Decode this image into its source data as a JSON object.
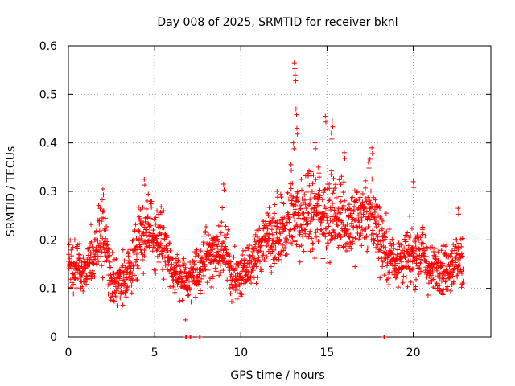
{
  "chart_data": {
    "type": "scatter",
    "title": "Day 008 of 2025, SRMTID for receiver bknl",
    "xlabel": "GPS time / hours",
    "ylabel": "SRMTID / TECUs",
    "xlim": [
      0,
      24.5
    ],
    "ylim": [
      0,
      0.6
    ],
    "xticks": [
      0,
      5,
      10,
      15,
      20
    ],
    "xtick_labels": [
      "0",
      "5",
      "10",
      "15",
      "20"
    ],
    "yticks": [
      0,
      0.1,
      0.2,
      0.3,
      0.4,
      0.5,
      0.6
    ],
    "ytick_labels": [
      "0",
      "0.1",
      "0.2",
      "0.3",
      "0.4",
      "0.5",
      "0.6"
    ],
    "grid": true,
    "marker": "+",
    "series": [
      {
        "name": "SRMTID",
        "color": "#ff0000",
        "profile": [
          [
            0.0,
            0.14
          ],
          [
            0.5,
            0.15
          ],
          [
            1.0,
            0.13
          ],
          [
            1.5,
            0.18
          ],
          [
            2.0,
            0.22
          ],
          [
            2.5,
            0.12
          ],
          [
            3.0,
            0.11
          ],
          [
            3.5,
            0.13
          ],
          [
            4.0,
            0.18
          ],
          [
            4.5,
            0.22
          ],
          [
            5.0,
            0.21
          ],
          [
            5.5,
            0.2
          ],
          [
            6.0,
            0.13
          ],
          [
            6.5,
            0.13
          ],
          [
            7.0,
            0.11
          ],
          [
            7.5,
            0.14
          ],
          [
            8.0,
            0.17
          ],
          [
            8.5,
            0.17
          ],
          [
            9.0,
            0.18
          ],
          [
            9.5,
            0.13
          ],
          [
            10.0,
            0.12
          ],
          [
            10.5,
            0.15
          ],
          [
            11.0,
            0.17
          ],
          [
            11.5,
            0.2
          ],
          [
            12.0,
            0.19
          ],
          [
            12.5,
            0.22
          ],
          [
            13.0,
            0.26
          ],
          [
            13.5,
            0.24
          ],
          [
            14.0,
            0.26
          ],
          [
            14.5,
            0.25
          ],
          [
            15.0,
            0.26
          ],
          [
            15.5,
            0.25
          ],
          [
            16.0,
            0.24
          ],
          [
            16.5,
            0.24
          ],
          [
            17.0,
            0.25
          ],
          [
            17.5,
            0.26
          ],
          [
            18.0,
            0.22
          ],
          [
            18.5,
            0.17
          ],
          [
            19.0,
            0.16
          ],
          [
            19.5,
            0.16
          ],
          [
            20.0,
            0.17
          ],
          [
            20.5,
            0.18
          ],
          [
            21.0,
            0.13
          ],
          [
            21.5,
            0.15
          ],
          [
            22.0,
            0.14
          ],
          [
            22.5,
            0.16
          ],
          [
            22.9,
            0.15
          ]
        ],
        "peaks": [
          [
            13.1,
            0.565
          ],
          [
            13.15,
            0.54
          ],
          [
            13.2,
            0.47
          ],
          [
            13.25,
            0.43
          ],
          [
            13.05,
            0.4
          ],
          [
            14.9,
            0.455
          ],
          [
            15.3,
            0.445
          ],
          [
            15.25,
            0.42
          ],
          [
            14.3,
            0.4
          ],
          [
            17.6,
            0.39
          ],
          [
            4.4,
            0.325
          ],
          [
            2.0,
            0.305
          ],
          [
            9.0,
            0.315
          ],
          [
            20.0,
            0.32
          ],
          [
            12.9,
            0.355
          ],
          [
            17.4,
            0.36
          ],
          [
            16.0,
            0.38
          ],
          [
            14.5,
            0.35
          ],
          [
            12.1,
            0.3
          ],
          [
            22.6,
            0.265
          ]
        ],
        "zero_points": [
          6.8,
          7.05,
          7.6,
          18.3
        ],
        "low_points": [
          6.8,
          0.035
        ]
      }
    ]
  }
}
